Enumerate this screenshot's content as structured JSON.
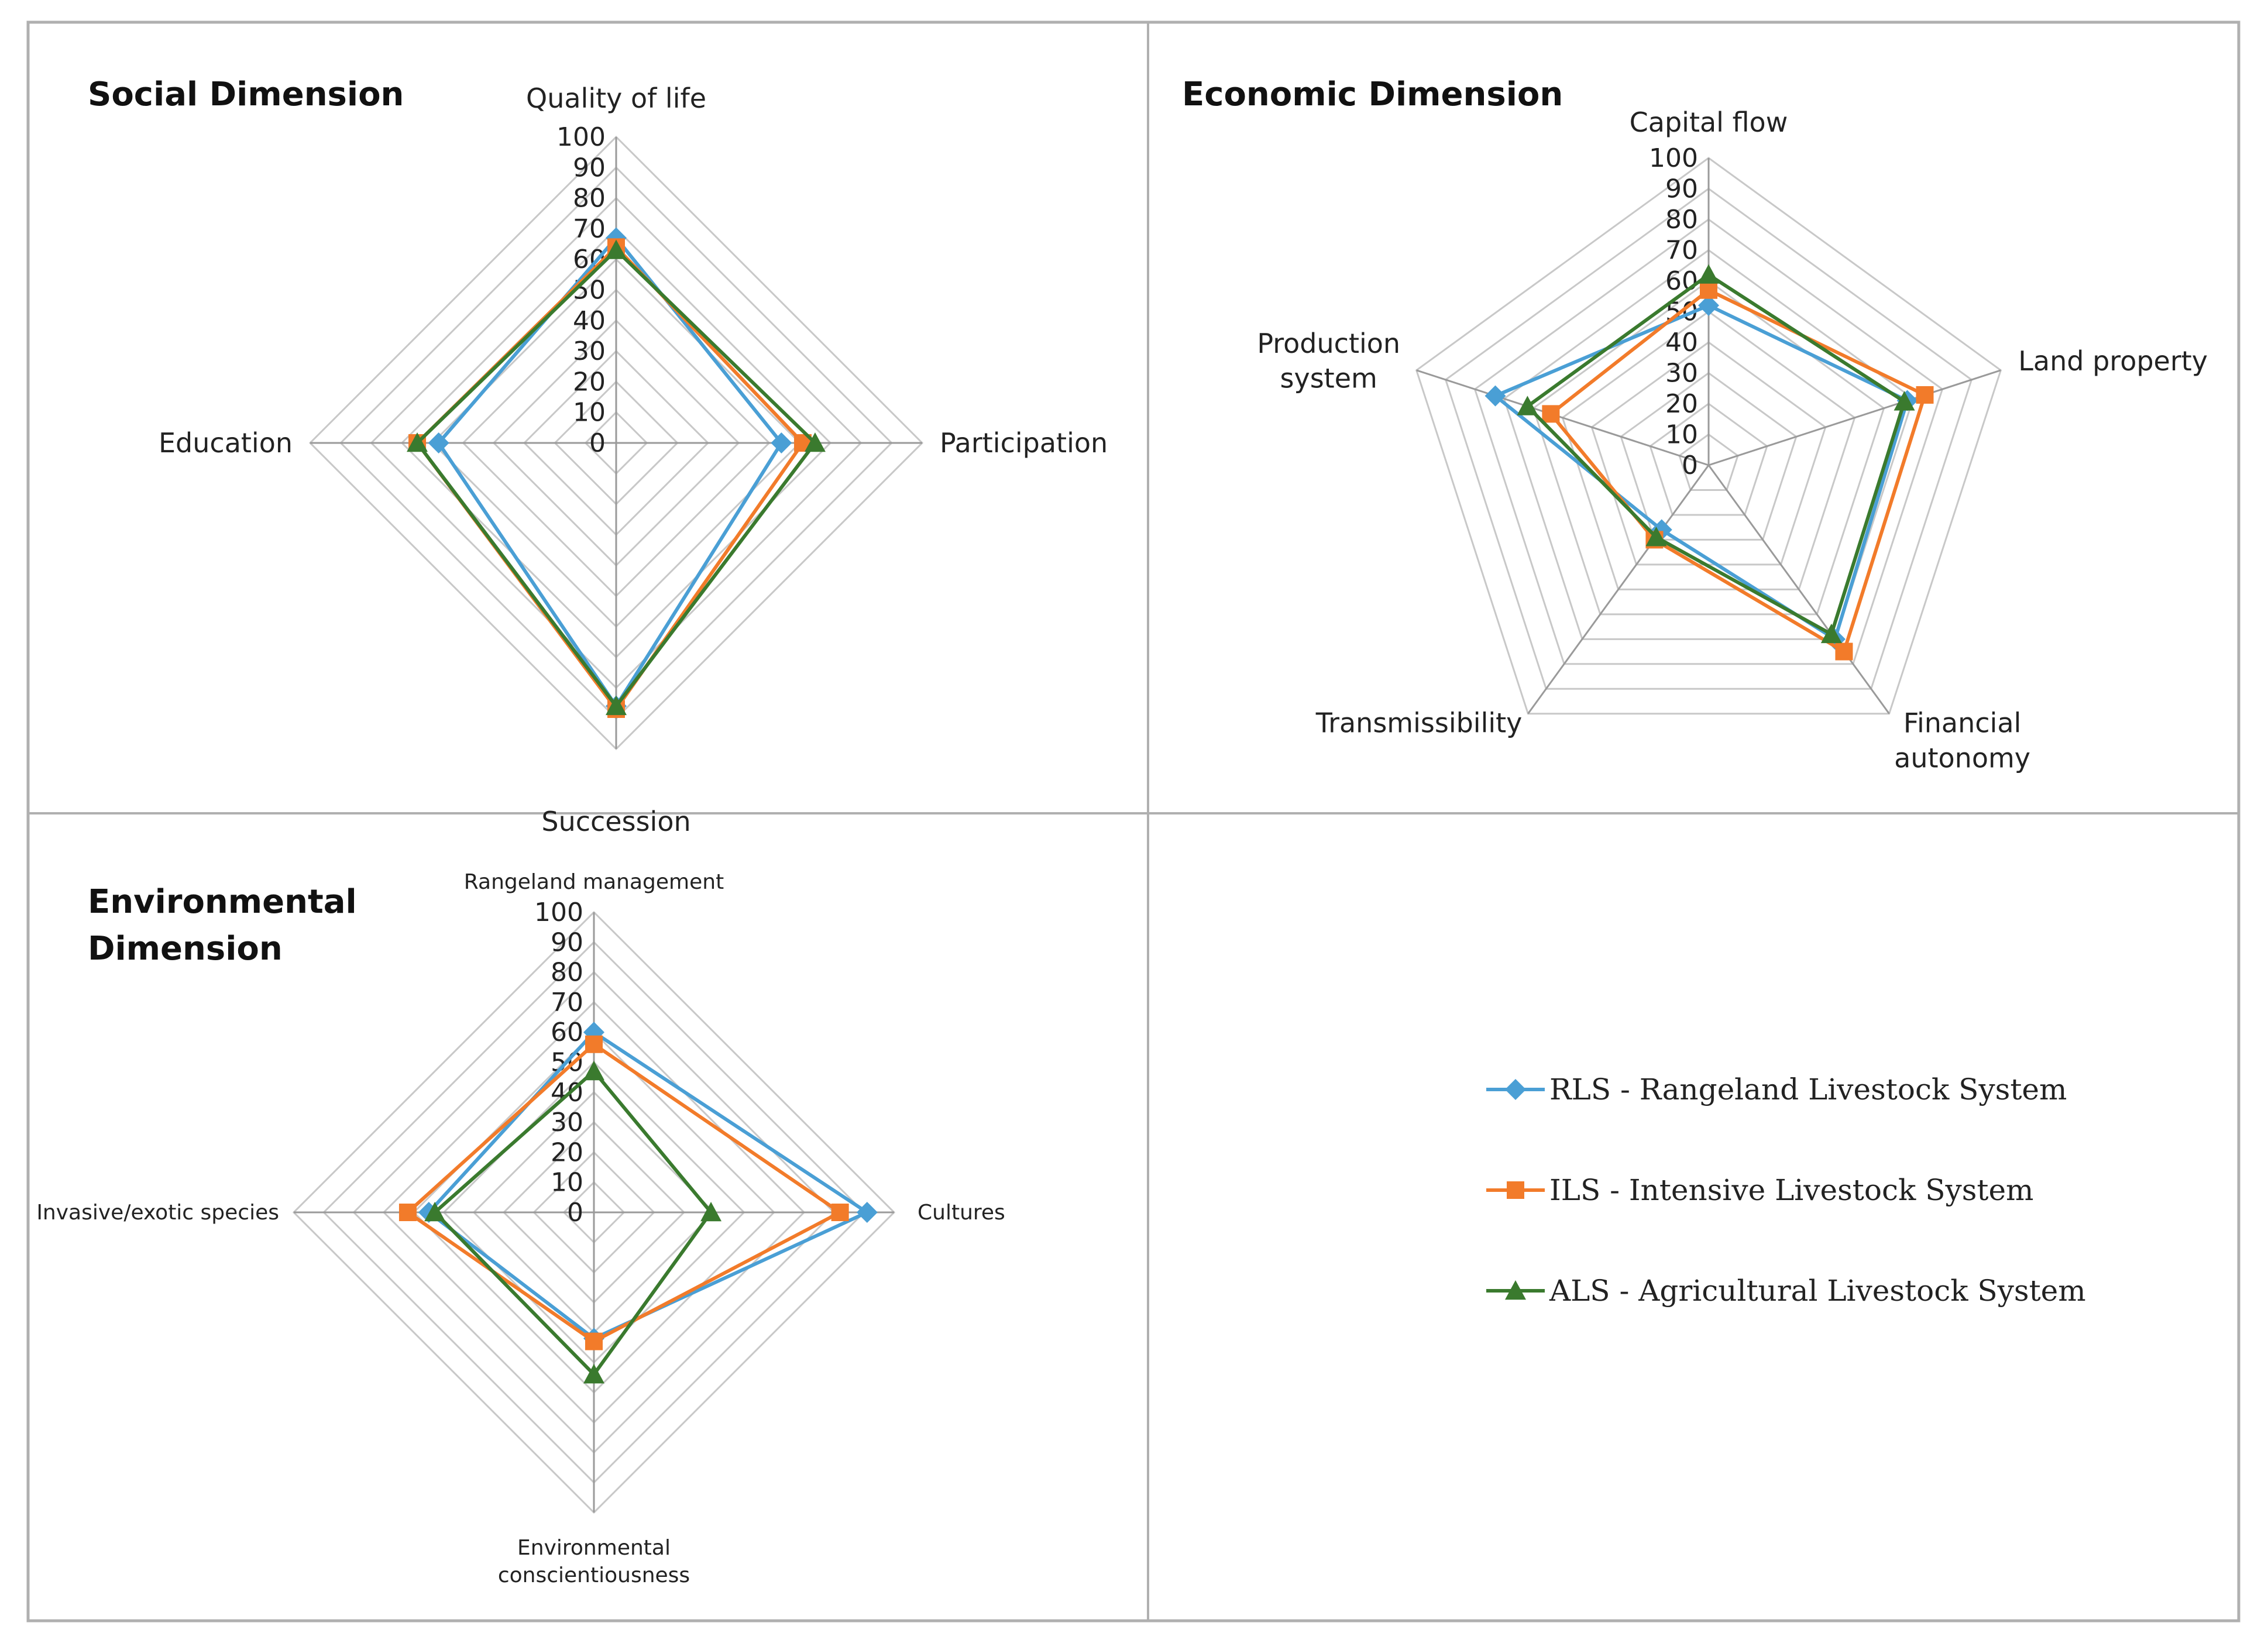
{
  "colors": {
    "series": {
      "RLS": "#4a9fd5",
      "ILS": "#f27b2a",
      "ALS": "#3a7a2e"
    },
    "grid": "#c8c8c8",
    "frame": "#b0b0b0",
    "axis": "#9a9a9a"
  },
  "series_meta": [
    {
      "key": "RLS",
      "marker": "diamond",
      "legend": "RLS - Rangeland Livestock System"
    },
    {
      "key": "ILS",
      "marker": "square",
      "legend": "ILS - Intensive Livestock System"
    },
    {
      "key": "ALS",
      "marker": "triangle",
      "legend": "ALS - Agricultural Livestock System"
    }
  ],
  "chart_data": [
    {
      "type": "radar",
      "title": "Social Dimension",
      "axes": [
        [
          "Quality of life"
        ],
        [
          "Participation"
        ],
        [
          "Succession"
        ],
        [
          "Education"
        ]
      ],
      "ticks": [
        "0",
        "10",
        "20",
        "30",
        "40",
        "50",
        "60",
        "70",
        "80",
        "90",
        "100"
      ],
      "range": [
        0,
        100
      ],
      "series": [
        {
          "key": "RLS",
          "values": [
            67,
            54,
            86,
            58
          ]
        },
        {
          "key": "ILS",
          "values": [
            64,
            61,
            87,
            65
          ]
        },
        {
          "key": "ALS",
          "values": [
            63,
            65,
            86,
            65
          ]
        }
      ]
    },
    {
      "type": "radar",
      "title": "Economic Dimension",
      "axes": [
        [
          "Capital flow"
        ],
        [
          "Land property"
        ],
        [
          "Financial",
          "autonomy"
        ],
        [
          "Transmissibility"
        ],
        [
          "Production",
          "system"
        ]
      ],
      "ticks": [
        "0",
        "10",
        "20",
        "30",
        "40",
        "50",
        "60",
        "70",
        "80",
        "90",
        "100"
      ],
      "range": [
        0,
        100
      ],
      "series": [
        {
          "key": "RLS",
          "values": [
            52,
            68,
            70,
            26,
            73
          ]
        },
        {
          "key": "ILS",
          "values": [
            57,
            74,
            75,
            30,
            54
          ]
        },
        {
          "key": "ALS",
          "values": [
            62,
            67,
            68,
            29,
            62
          ]
        }
      ]
    },
    {
      "type": "radar",
      "title": "Environmental Dimension",
      "title_lines": [
        "Environmental",
        "Dimension"
      ],
      "axes": [
        [
          "Rangeland management"
        ],
        [
          "Cultures"
        ],
        [
          "Environmental",
          "conscientiousness"
        ],
        [
          "Invasive/exotic species"
        ]
      ],
      "ticks": [
        "0",
        "10",
        "20",
        "30",
        "40",
        "50",
        "60",
        "70",
        "80",
        "90",
        "100"
      ],
      "range": [
        0,
        100
      ],
      "series": [
        {
          "key": "RLS",
          "values": [
            60,
            91,
            42,
            55
          ]
        },
        {
          "key": "ILS",
          "values": [
            56,
            82,
            43,
            62
          ]
        },
        {
          "key": "ALS",
          "values": [
            47,
            39,
            54,
            53
          ]
        }
      ]
    }
  ]
}
